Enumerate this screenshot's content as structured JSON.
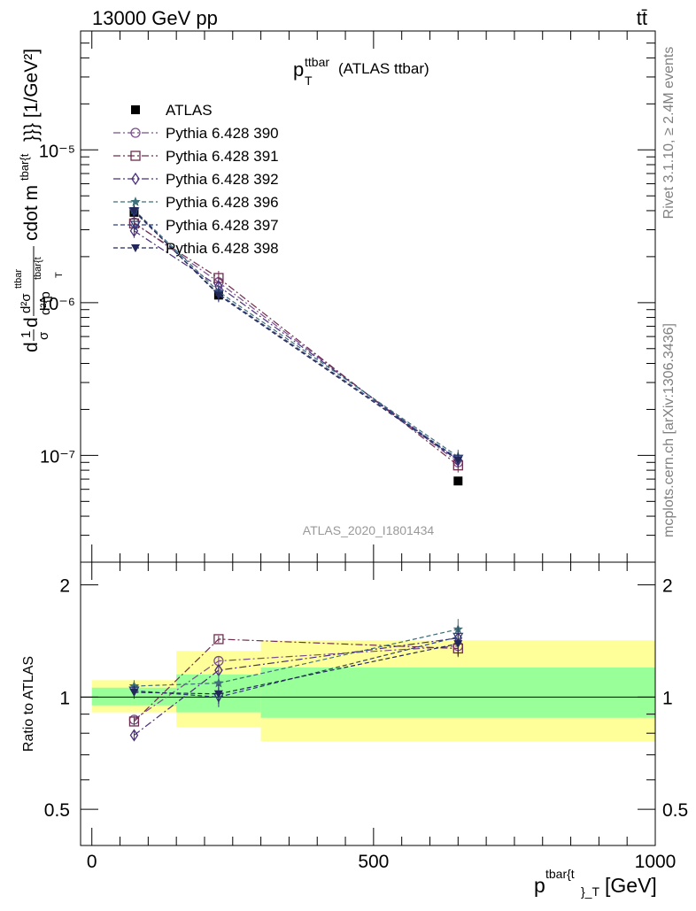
{
  "header": {
    "left": "13000 GeV pp",
    "right": "tt̄"
  },
  "side_labels": {
    "rivet": "Rivet 3.1.10, ≥ 2.4M events",
    "mcplots": "mcplots.cern.ch [arXiv:1306.3436]"
  },
  "chart_data": [
    {
      "type": "scatter",
      "panel": "main",
      "title": {
        "main": "p",
        "sub": "T",
        "sup": "ttbar",
        "suffix": "(ATLAS ttbar)"
      },
      "watermark": "ATLAS_2020_I1801434",
      "ylabel": "d1σdd²σᵗᵗᵇᵃʳd²{pᵗᵇᵃʳ{ᵗ}}cdot mᵗᵇᵃʳ{ᵗ}}} [1/GeV²]",
      "ylabel_parts": {
        "lead": "d",
        "frac1_num": "1",
        "frac1_den": "σ",
        "frac2_num": "d²σ",
        "frac2_num_sup": "ttbar",
        "frac2_den": "d²{p",
        "frac2_den_sup": "tbar{t",
        "frac2_den_sub": "T",
        "tail": "cdot m",
        "tail_sup": "tbar{t",
        "tail_end": "}}} [1/GeV²]"
      },
      "xlim": [
        -20,
        1000
      ],
      "ylim": [
        2e-08,
        6e-05
      ],
      "log_y": true,
      "y_tick_labels": [
        "10⁻⁷",
        "10⁻⁶",
        "10⁻⁵"
      ],
      "y_tick_values": [
        1e-07,
        1e-06,
        1e-05
      ],
      "legend_position": "top-left",
      "series": [
        {
          "name": "ATLAS",
          "marker": "square-filled",
          "color": "#000000",
          "x": [
            75,
            225,
            650
          ],
          "y": [
            3.9e-06,
            1.12e-06,
            6.8e-08
          ]
        },
        {
          "name": "Pythia 6.428 390",
          "marker": "circle-open",
          "color": "#7b4f8a",
          "dash": "8,3,2,3",
          "x": [
            75,
            225,
            650
          ],
          "y": [
            3.35e-06,
            1.36e-06,
            9e-08
          ]
        },
        {
          "name": "Pythia 6.428 391",
          "marker": "square-open",
          "color": "#6e2d4f",
          "dash": "8,3,2,3",
          "x": [
            75,
            225,
            650
          ],
          "y": [
            3.3e-06,
            1.45e-06,
            8.6e-08
          ]
        },
        {
          "name": "Pythia 6.428 392",
          "marker": "diamond-open",
          "color": "#4a2e7d",
          "dash": "8,3,2,3",
          "x": [
            75,
            225,
            650
          ],
          "y": [
            2.95e-06,
            1.28e-06,
            9.3e-08
          ]
        },
        {
          "name": "Pythia 6.428 396",
          "marker": "star",
          "color": "#3f6f79",
          "dash": "5,3",
          "x": [
            75,
            225,
            650
          ],
          "y": [
            4.05e-06,
            1.18e-06,
            9.8e-08
          ]
        },
        {
          "name": "Pythia 6.428 397",
          "marker": "triangle-down",
          "color": "#2f3f7a",
          "dash": "5,3",
          "x": [
            75,
            225,
            650
          ],
          "y": [
            3.95e-06,
            1.14e-06,
            9.5e-08
          ]
        },
        {
          "name": "Pythia 6.428 398",
          "marker": "triangle-down-filled",
          "color": "#22275a",
          "dash": "5,3",
          "x": [
            75,
            225,
            650
          ],
          "y": [
            4e-06,
            1.12e-06,
            9.3e-08
          ]
        }
      ]
    },
    {
      "type": "scatter",
      "panel": "ratio",
      "ylabel": "Ratio to ATLAS",
      "xlabel": {
        "main": "p",
        "sup": "tbar{t",
        "sub": "}_T",
        "unit": "[GeV]"
      },
      "xlim": [
        -20,
        1000
      ],
      "ylim": [
        0.4,
        2.3
      ],
      "log_y": true,
      "x_tick_labels": [
        "0",
        "500",
        "1000"
      ],
      "x_tick_values": [
        0,
        500,
        1000
      ],
      "y_tick_labels": [
        "0.5",
        "1",
        "2"
      ],
      "y_tick_values": [
        0.5,
        1,
        2
      ],
      "reference_line": 1,
      "bands": [
        {
          "x0": 0,
          "x1": 150,
          "yellow": [
            0.91,
            1.11
          ],
          "green": [
            0.95,
            1.06
          ]
        },
        {
          "x0": 150,
          "x1": 300,
          "yellow": [
            0.83,
            1.33
          ],
          "green": [
            0.91,
            1.15
          ]
        },
        {
          "x0": 300,
          "x1": 1000,
          "yellow": [
            0.76,
            1.42
          ],
          "green": [
            0.88,
            1.2
          ]
        }
      ],
      "series": [
        {
          "name": "Pythia 6.428 390",
          "x": [
            75,
            225,
            650
          ],
          "y": [
            0.87,
            1.25,
            1.37
          ],
          "err": [
            0.02,
            0.03,
            0.07
          ]
        },
        {
          "name": "Pythia 6.428 391",
          "x": [
            75,
            225,
            650
          ],
          "y": [
            0.86,
            1.43,
            1.35
          ],
          "err": [
            0.02,
            0.03,
            0.07
          ]
        },
        {
          "name": "Pythia 6.428 392",
          "x": [
            75,
            225,
            650
          ],
          "y": [
            0.79,
            1.18,
            1.44
          ],
          "err": [
            0.02,
            0.03,
            0.07
          ]
        },
        {
          "name": "Pythia 6.428 396",
          "x": [
            75,
            225,
            650
          ],
          "y": [
            1.07,
            1.09,
            1.52
          ],
          "err": [
            0.04,
            0.06,
            0.1
          ]
        },
        {
          "name": "Pythia 6.428 397",
          "x": [
            75,
            225,
            650
          ],
          "y": [
            1.04,
            1.0,
            1.45
          ],
          "err": [
            0.04,
            0.06,
            0.1
          ]
        },
        {
          "name": "Pythia 6.428 398",
          "x": [
            75,
            225,
            650
          ],
          "y": [
            1.03,
            1.02,
            1.39
          ],
          "err": [
            0.04,
            0.06,
            0.1
          ]
        }
      ]
    }
  ]
}
